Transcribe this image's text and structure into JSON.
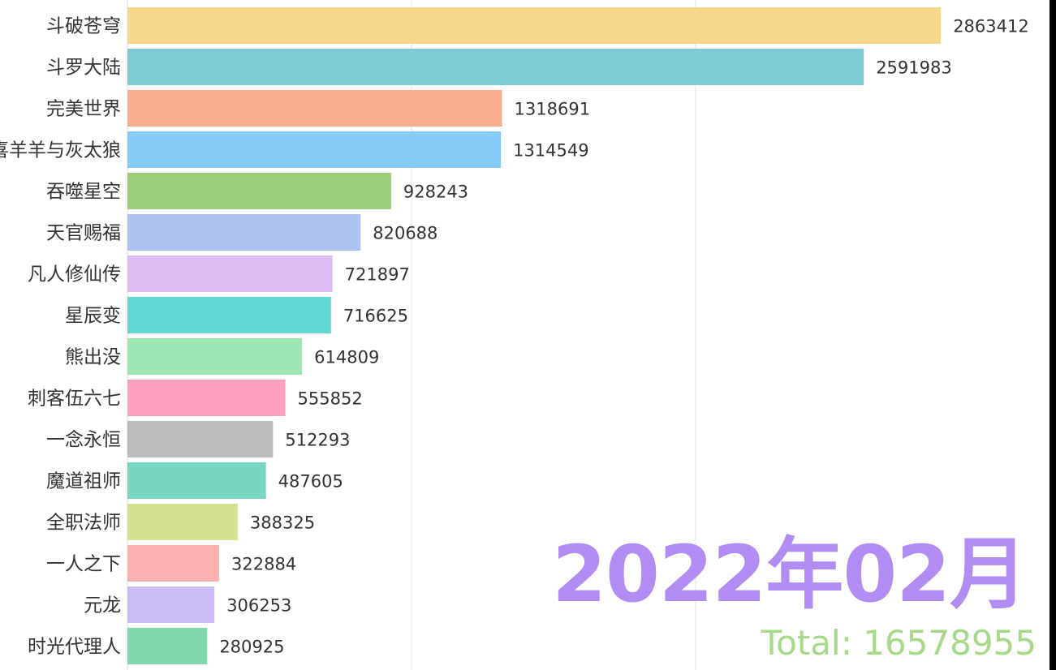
{
  "chart_data": {
    "type": "bar",
    "orientation": "horizontal",
    "categories": [
      "斗破苍穹",
      "斗罗大陆",
      "完美世界",
      "喜羊羊与灰太狼",
      "吞噬星空",
      "天官赐福",
      "凡人修仙传",
      "星辰变",
      "熊出没",
      "刺客伍六七",
      "一念永恒",
      "魔道祖师",
      "全职法师",
      "一人之下",
      "元龙",
      "时光代理人"
    ],
    "values": [
      2863412,
      2591983,
      1318691,
      1314549,
      928243,
      820688,
      721897,
      716625,
      614809,
      555852,
      512293,
      487605,
      388325,
      322884,
      306253,
      280925
    ],
    "colors": [
      "#f7d78c",
      "#7ecdd4",
      "#f8ad8e",
      "#85cbf6",
      "#9bcf7c",
      "#aec2f2",
      "#dfbdf2",
      "#62d8d4",
      "#9ee6b4",
      "#fd9fc1",
      "#bcbcbc",
      "#76d6c0",
      "#d3e28e",
      "#fdb0b0",
      "#cdbdf6",
      "#80d6ad"
    ],
    "xlim": [
      0,
      3700000
    ],
    "gridlines": [
      1000000,
      2000000
    ],
    "grid": true,
    "period_label": "2022年02月",
    "total_label": "Total: 16578955"
  }
}
